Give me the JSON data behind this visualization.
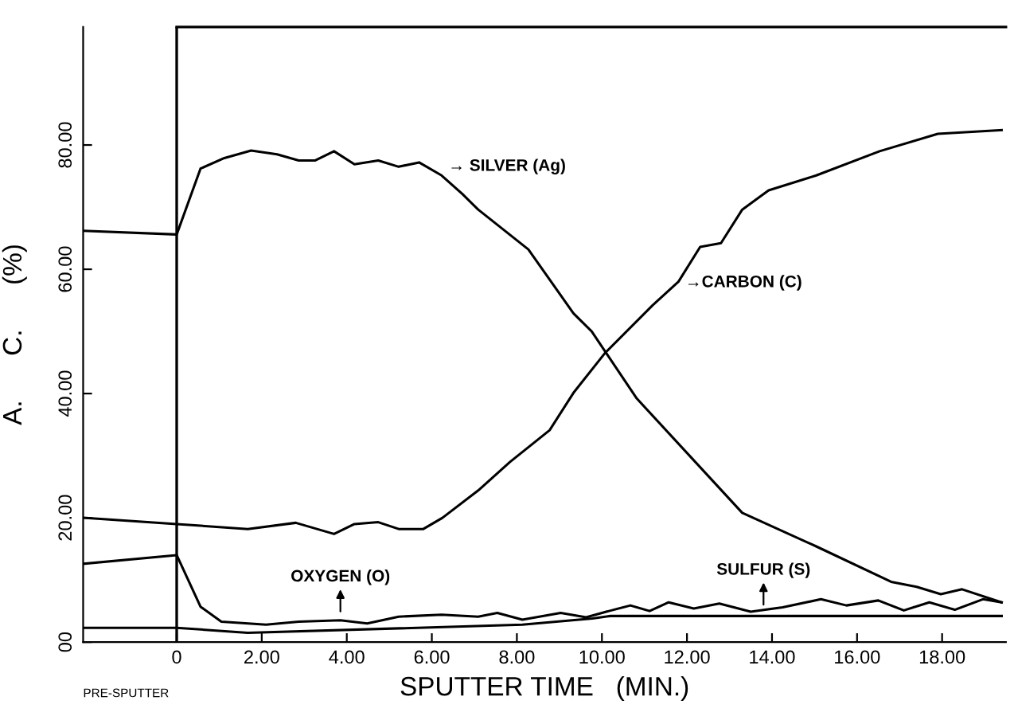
{
  "chart_data": {
    "type": "line",
    "xlabel": "SPUTTER TIME   (MIN.)",
    "ylabel": "A.      C.      (%)",
    "xlim": [
      -2.2,
      19.5
    ],
    "ylim": [
      0,
      99
    ],
    "xticks": [
      {
        "value": 0,
        "label": "0"
      },
      {
        "value": 2,
        "label": "2.00"
      },
      {
        "value": 4,
        "label": "4.00"
      },
      {
        "value": 6,
        "label": "6.00"
      },
      {
        "value": 8,
        "label": "8.00"
      },
      {
        "value": 10,
        "label": "10.00"
      },
      {
        "value": 12,
        "label": "12.00"
      },
      {
        "value": 14,
        "label": "14.00"
      },
      {
        "value": 16,
        "label": "16.00"
      },
      {
        "value": 18,
        "label": "18.00"
      }
    ],
    "yticks": [
      {
        "value": 0,
        "label": "00"
      },
      {
        "value": 20,
        "label": "20.00"
      },
      {
        "value": 40,
        "label": "40.00"
      },
      {
        "value": 60,
        "label": "60.00"
      },
      {
        "value": 80,
        "label": "80.00"
      }
    ],
    "grid": false,
    "legend": false,
    "marker": "none",
    "line_style": "solid",
    "ref_lines": [
      {
        "axis": "x",
        "value": 0,
        "label": null,
        "color": "#000000"
      }
    ],
    "series": [
      {
        "color": "#000000",
        "x": [
          -2.2,
          0,
          0.56,
          1.12,
          1.75,
          2.36,
          2.87,
          3.25,
          3.7,
          4.18,
          4.74,
          5.22,
          5.7,
          6.23,
          6.72,
          7.09,
          8.27,
          9.33,
          9.76,
          10.82,
          13.3,
          15.04,
          16.8,
          17.4,
          17.97,
          18.47,
          19.4
        ],
        "values": [
          66.2,
          65.6,
          76.2,
          77.9,
          79.1,
          78.5,
          77.5,
          77.5,
          79.0,
          76.9,
          77.5,
          76.5,
          77.2,
          75.1,
          72.1,
          69.6,
          63.2,
          52.9,
          50,
          39.2,
          20.8,
          15.4,
          9.7,
          8.9,
          7.7,
          8.5,
          6.4
        ]
      },
      {
        "color": "#000000",
        "x": [
          -2.2,
          0,
          1.67,
          2.8,
          3.7,
          4.18,
          4.74,
          5.22,
          5.8,
          6.25,
          7.09,
          7.84,
          8.77,
          9.33,
          10.07,
          11.19,
          11.8,
          12.31,
          12.8,
          13.3,
          13.92,
          15.04,
          16.53,
          17.9,
          19.4
        ],
        "values": [
          20.0,
          19.0,
          18.2,
          19.2,
          17.4,
          19.0,
          19.3,
          18.2,
          18.2,
          20.0,
          24.4,
          29.0,
          34.1,
          40.1,
          46.5,
          54.2,
          58.0,
          63.6,
          64.2,
          69.6,
          72.7,
          75.1,
          79.0,
          81.8,
          82.4
        ]
      },
      {
        "color": "#000000",
        "x": [
          -2.2,
          0,
          0.56,
          1.05,
          2.1,
          2.87,
          3.85,
          4.48,
          5.22,
          6.23,
          7.09,
          7.54,
          8.13,
          9.03,
          9.63,
          10.22,
          10.67,
          11.12,
          11.57,
          12.16,
          12.76,
          13.5,
          14.25,
          15.15,
          15.75,
          16.5,
          17.1,
          17.7,
          18.3,
          18.96,
          19.4
        ],
        "values": [
          12.6,
          14.0,
          5.7,
          3.3,
          2.8,
          3.3,
          3.5,
          3.0,
          4.1,
          4.4,
          4.1,
          4.7,
          3.6,
          4.7,
          4.0,
          5.1,
          5.9,
          5.0,
          6.4,
          5.4,
          6.2,
          4.9,
          5.6,
          6.9,
          5.9,
          6.7,
          5.1,
          6.4,
          5.2,
          6.9,
          6.4
        ]
      },
      {
        "color": "#000000",
        "x": [
          -2.2,
          0,
          1.67,
          8.13,
          9.78,
          10.2,
          19.4
        ],
        "values": [
          2.3,
          2.3,
          1.5,
          2.8,
          3.8,
          4.2,
          4.2
        ]
      }
    ],
    "annotations": [
      {
        "text": "→ SILVER (Ag)",
        "x": 6.23,
        "y": 75.1
      },
      {
        "text": "→CARBON (C)",
        "x": 11.8,
        "y": 56.4
      },
      {
        "text": "OXYGEN (O)",
        "x": 3.85,
        "y": 3.5
      },
      {
        "text": "SULFUR (S)",
        "x": 13.8,
        "y": 4.6
      },
      "PRE-SPUTTER"
    ]
  }
}
